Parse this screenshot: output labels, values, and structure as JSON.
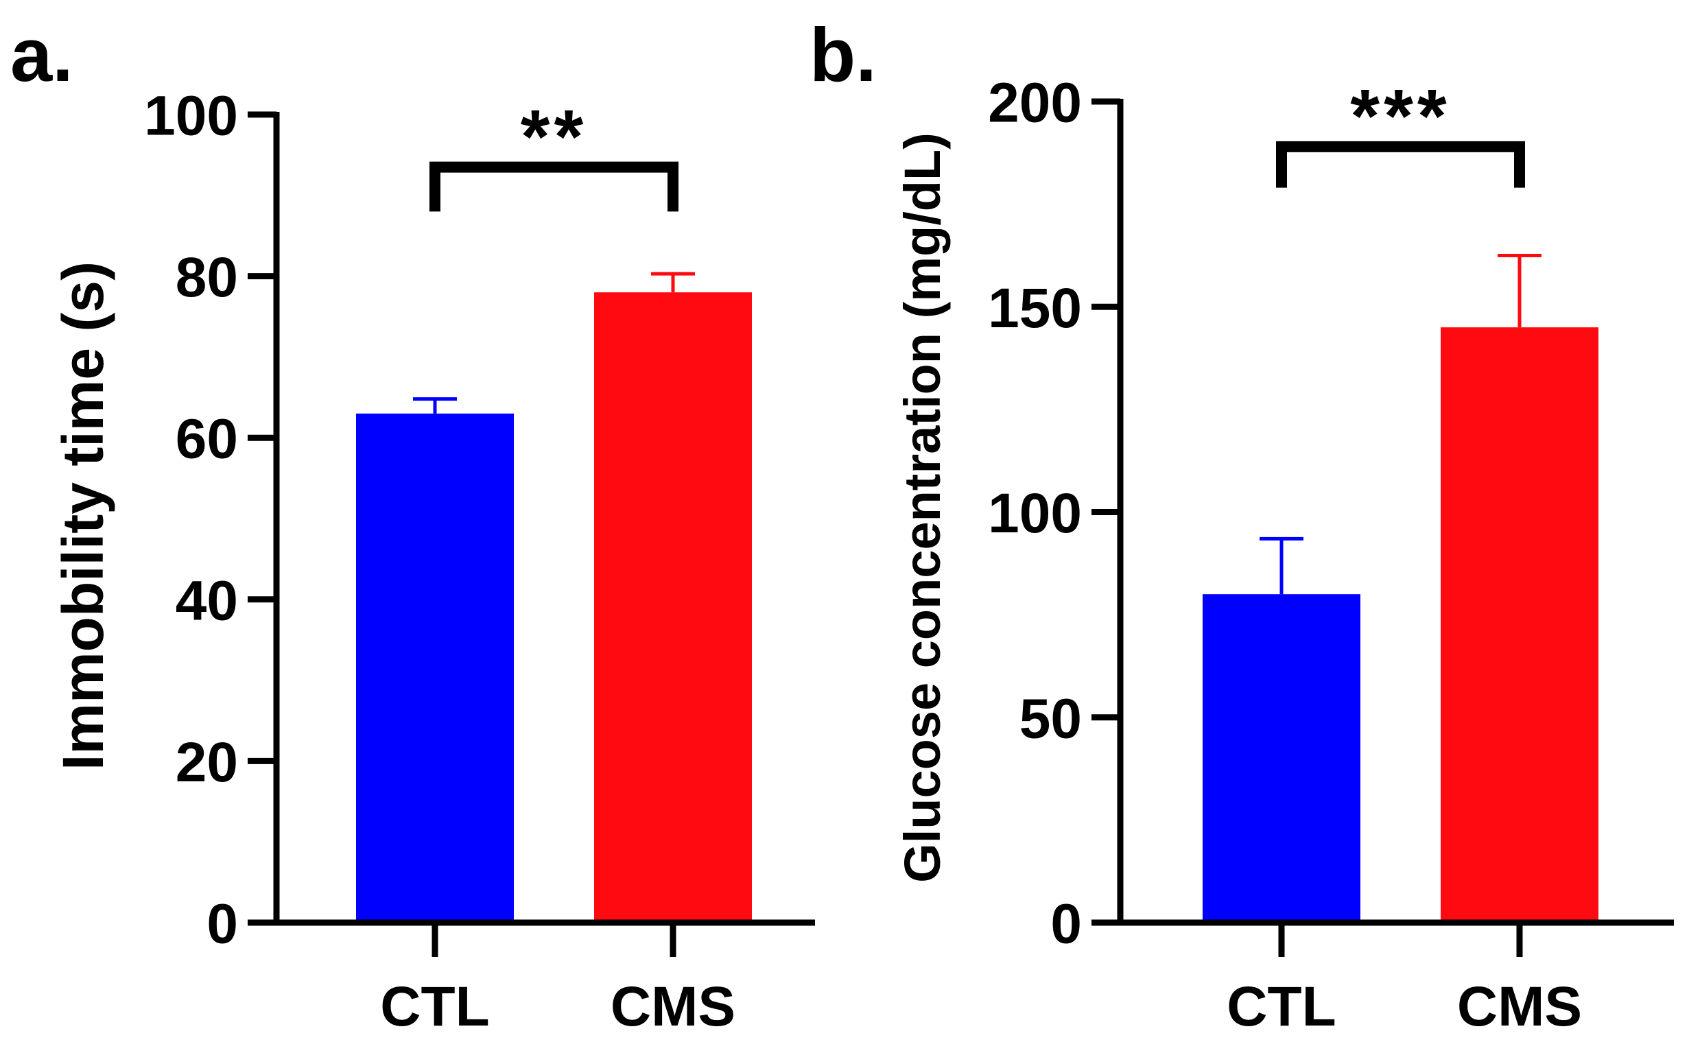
{
  "chart_data": [
    {
      "panel_label": "a.",
      "type": "bar",
      "categories": [
        "CTL",
        "CMS"
      ],
      "values": [
        63,
        78
      ],
      "errors": [
        1.8,
        2.3
      ],
      "colors": [
        "#0000ff",
        "#ff0a10"
      ],
      "title": "",
      "xlabel": "",
      "ylabel": "Immobility time (s)",
      "ylim": [
        0,
        100
      ],
      "yticks": [
        0,
        20,
        40,
        60,
        80,
        100
      ],
      "ytick_labels": [
        "0",
        "20",
        "40",
        "60",
        "80",
        "100"
      ],
      "grid": false,
      "significance": {
        "from": 0,
        "to": 1,
        "label": "**",
        "y": 93.5,
        "arm_bottom": 88
      }
    },
    {
      "panel_label": "b.",
      "type": "bar",
      "categories": [
        "CTL",
        "CMS"
      ],
      "values": [
        80,
        145
      ],
      "errors": [
        13.5,
        17.5
      ],
      "colors": [
        "#0000ff",
        "#ff0a10"
      ],
      "title": "",
      "xlabel": "",
      "ylabel": "Glucose concentration (mg/dL)",
      "ylim": [
        0,
        200
      ],
      "yticks": [
        0,
        50,
        100,
        150,
        200
      ],
      "ytick_labels": [
        "0",
        "50",
        "100",
        "150",
        "200"
      ],
      "grid": false,
      "significance": {
        "from": 0,
        "to": 1,
        "label": "***",
        "y": 189,
        "arm_bottom": 179
      }
    }
  ]
}
